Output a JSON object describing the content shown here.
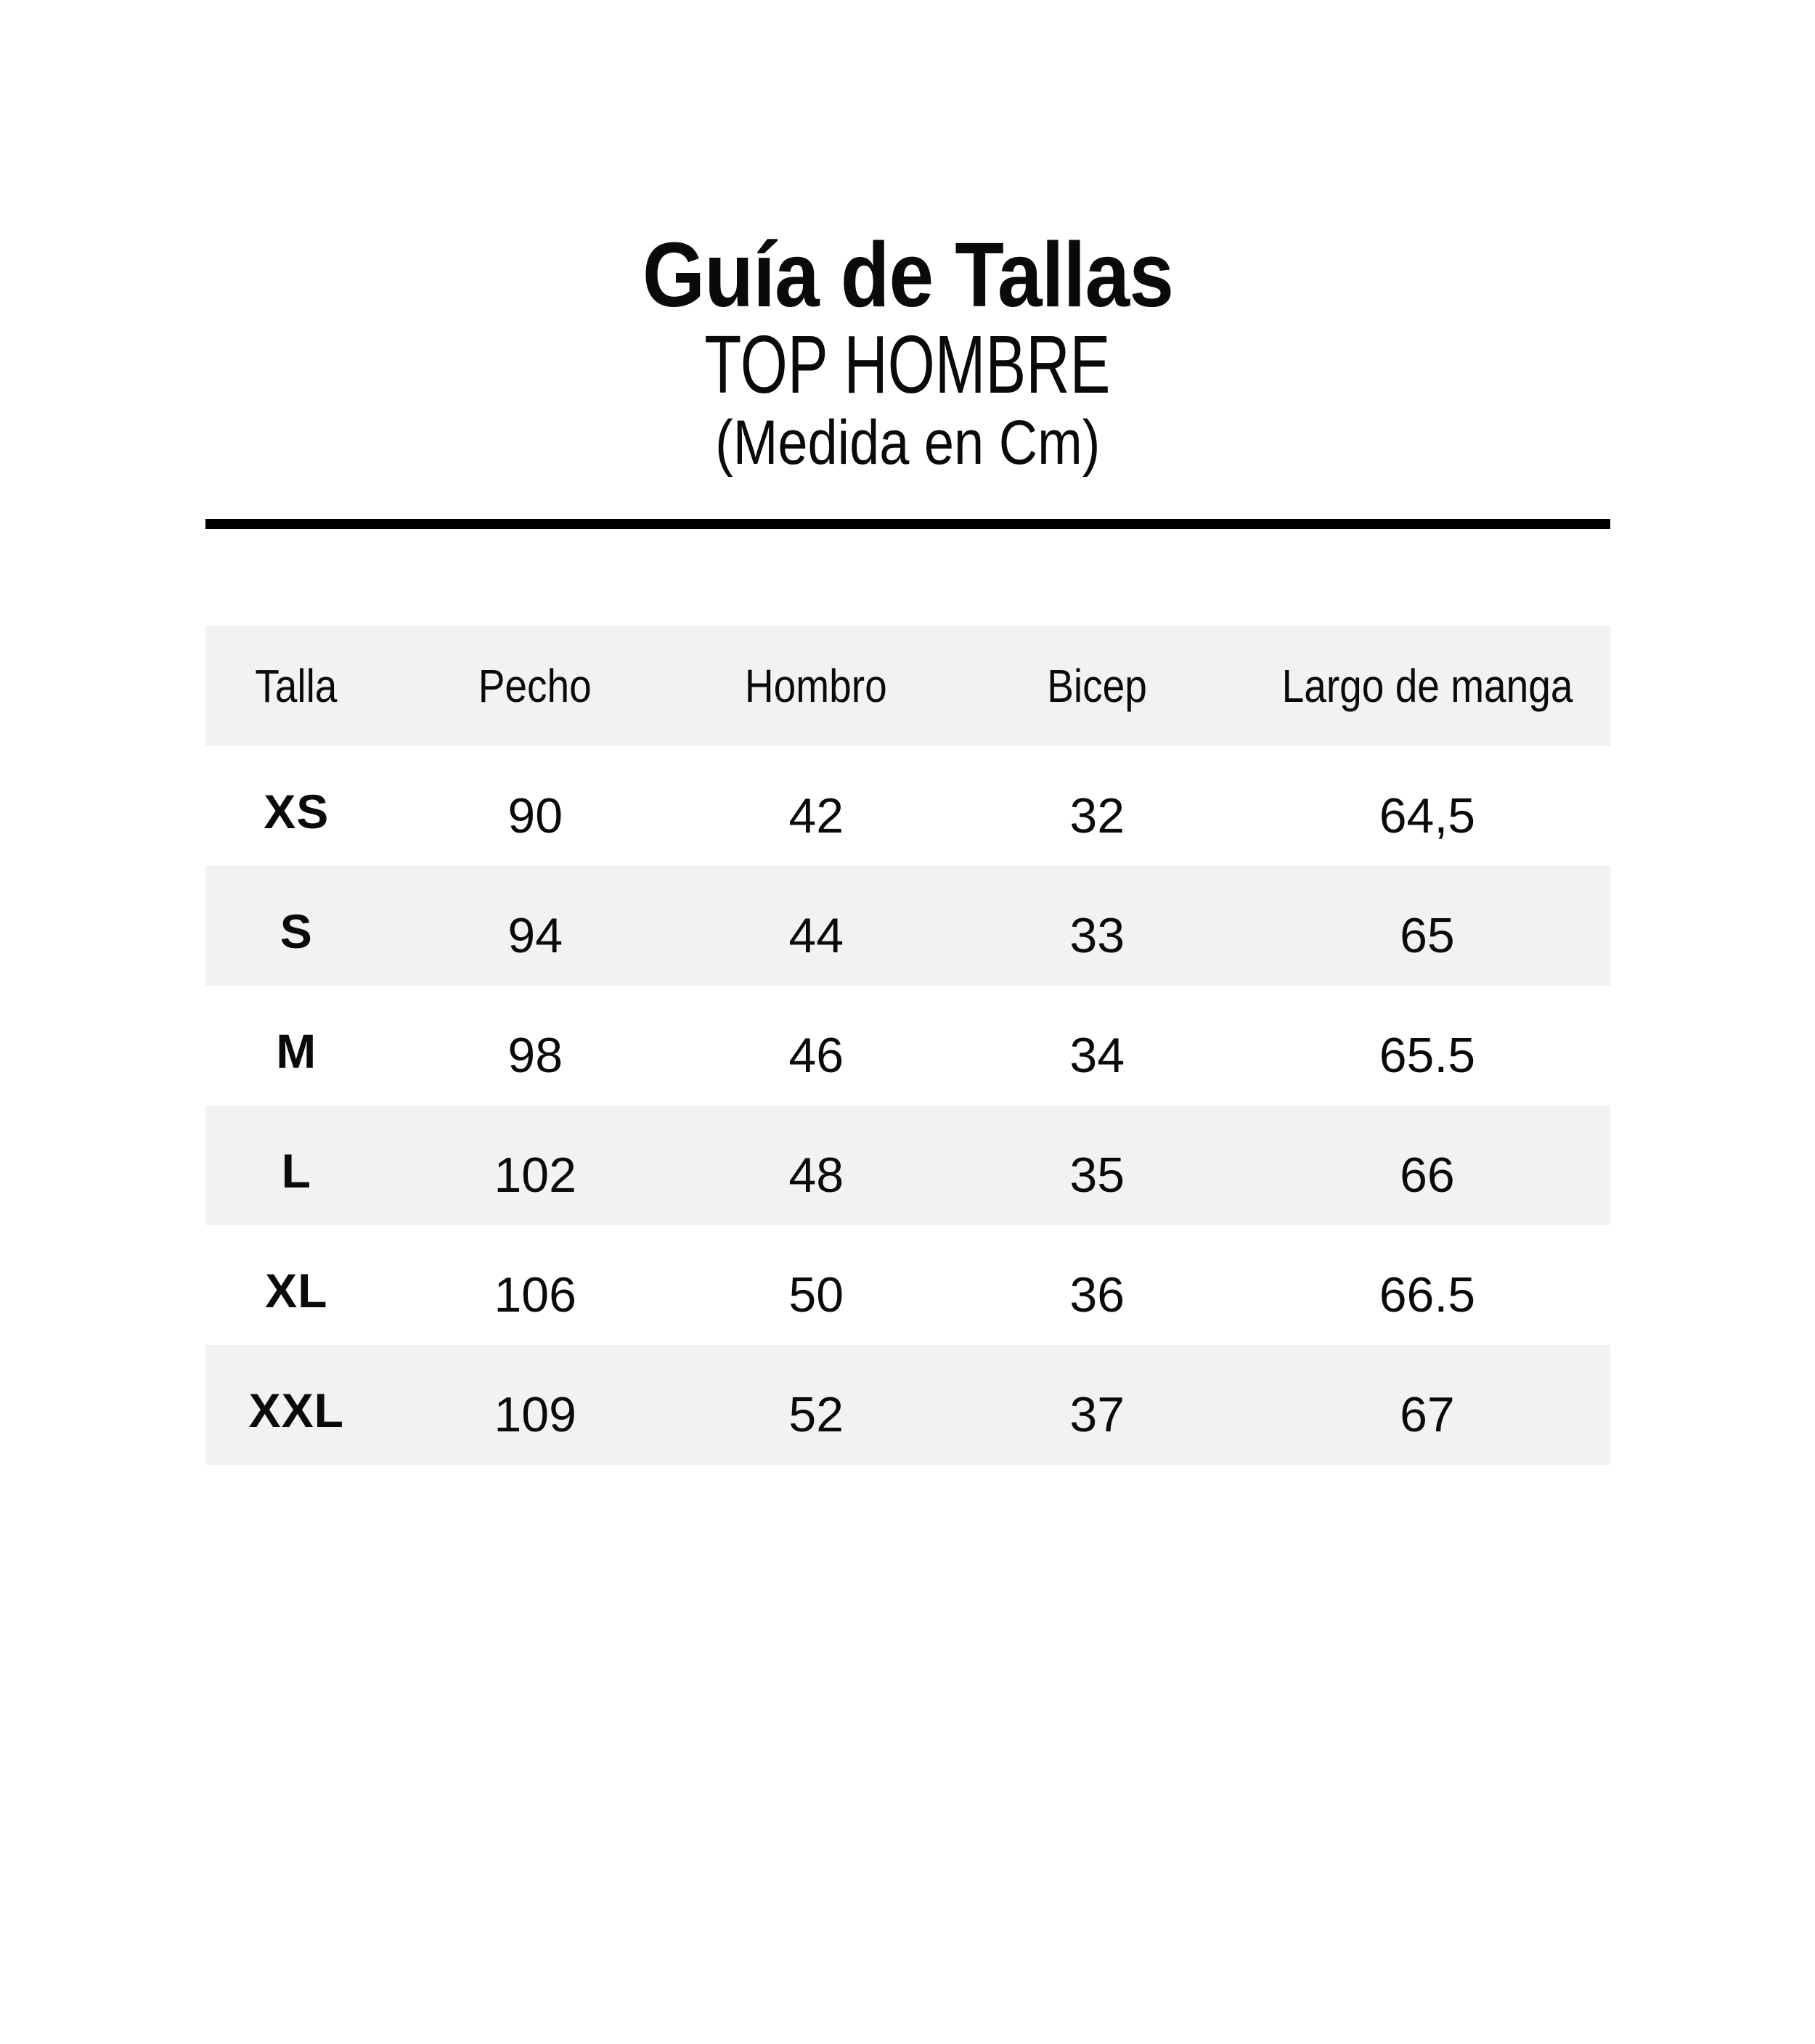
{
  "header": {
    "title": "Guía de Tallas",
    "subtitle": "TOP HOMBRE",
    "units_note": "(Medida en Cm)"
  },
  "chart_data": {
    "type": "table",
    "title": "Guía de Tallas",
    "subtitle": "TOP HOMBRE",
    "units": "(Medida en Cm)",
    "columns": [
      "Talla",
      "Pecho",
      "Hombro",
      "Bicep",
      "Largo de manga"
    ],
    "rows": [
      [
        "XS",
        "90",
        "42",
        "32",
        "64,5"
      ],
      [
        "S",
        "94",
        "44",
        "33",
        "65"
      ],
      [
        "M",
        "98",
        "46",
        "34",
        "65.5"
      ],
      [
        "L",
        "102",
        "48",
        "35",
        "66"
      ],
      [
        "XL",
        "106",
        "50",
        "36",
        "66.5"
      ],
      [
        "XXL",
        "109",
        "52",
        "37",
        "67"
      ]
    ],
    "layout": {
      "striped": true,
      "stripe_pattern": "header and alternate rows shaded",
      "gridlines": false
    }
  },
  "colors": {
    "bg": "#ffffff",
    "ink": "#0a0a0a",
    "stripe": "#f2f2f0",
    "rule": "#000000"
  }
}
